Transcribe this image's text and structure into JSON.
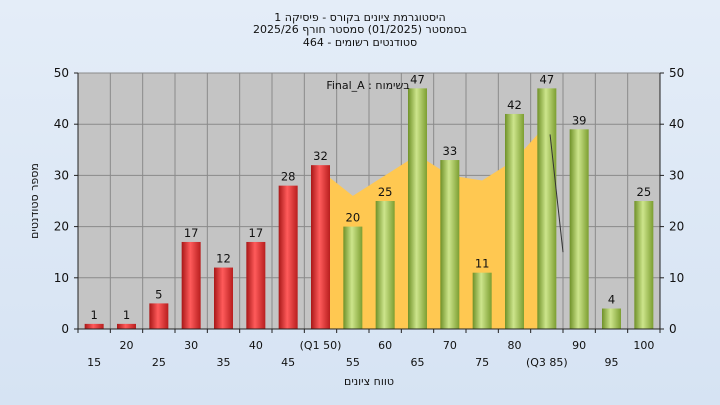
{
  "title": {
    "line1": "היסטוגרמת ציונים בקורס - פיסיקה 1",
    "line2": "בסמסטר  (01/2025)  סמסטר חורף  2025/26",
    "line3": "464 - סטודנטים רשומים"
  },
  "colors": {
    "fail_bar": "#e23a3a",
    "pass_bar": "#9fc24c",
    "area_fill": "#ffc851",
    "plot_bg": "#c4c4c4",
    "grid": "#8a8a8a"
  },
  "chart_data": {
    "type": "bar",
    "xlabel": "טווח ציונים",
    "ylabel": "מספר סטודנטים",
    "ylim": [
      0,
      50
    ],
    "yticks": [
      0,
      10,
      20,
      30,
      40,
      50
    ],
    "annotation": "Final_A : בשימוח",
    "categories": [
      "15",
      "20",
      "25",
      "30",
      "35",
      "40",
      "45",
      "50",
      "55",
      "60",
      "65",
      "70",
      "75",
      "80",
      "85",
      "90",
      "95",
      "100"
    ],
    "tick_labels_row1": [
      "",
      "20",
      "",
      "30",
      "",
      "40",
      "",
      "(Q1 50)",
      "",
      "60",
      "",
      "70",
      "",
      "80",
      "",
      "90",
      "",
      "100"
    ],
    "tick_labels_row2": [
      "15",
      "",
      "25",
      "",
      "35",
      "",
      "45",
      "",
      "55",
      "",
      "65",
      "",
      "75",
      "",
      "(Q3 85)",
      "",
      "95",
      ""
    ],
    "values": [
      1,
      1,
      5,
      17,
      12,
      17,
      28,
      32,
      20,
      25,
      47,
      33,
      11,
      42,
      47,
      39,
      4,
      25
    ],
    "status": [
      "fail",
      "fail",
      "fail",
      "fail",
      "fail",
      "fail",
      "fail",
      "fail",
      "pass",
      "pass",
      "pass",
      "pass",
      "pass",
      "pass",
      "pass",
      "pass",
      "pass",
      "pass"
    ],
    "area_values": [
      null,
      null,
      null,
      null,
      null,
      null,
      null,
      31,
      26,
      30,
      34,
      30,
      29,
      33,
      40,
      null,
      null,
      null
    ]
  }
}
